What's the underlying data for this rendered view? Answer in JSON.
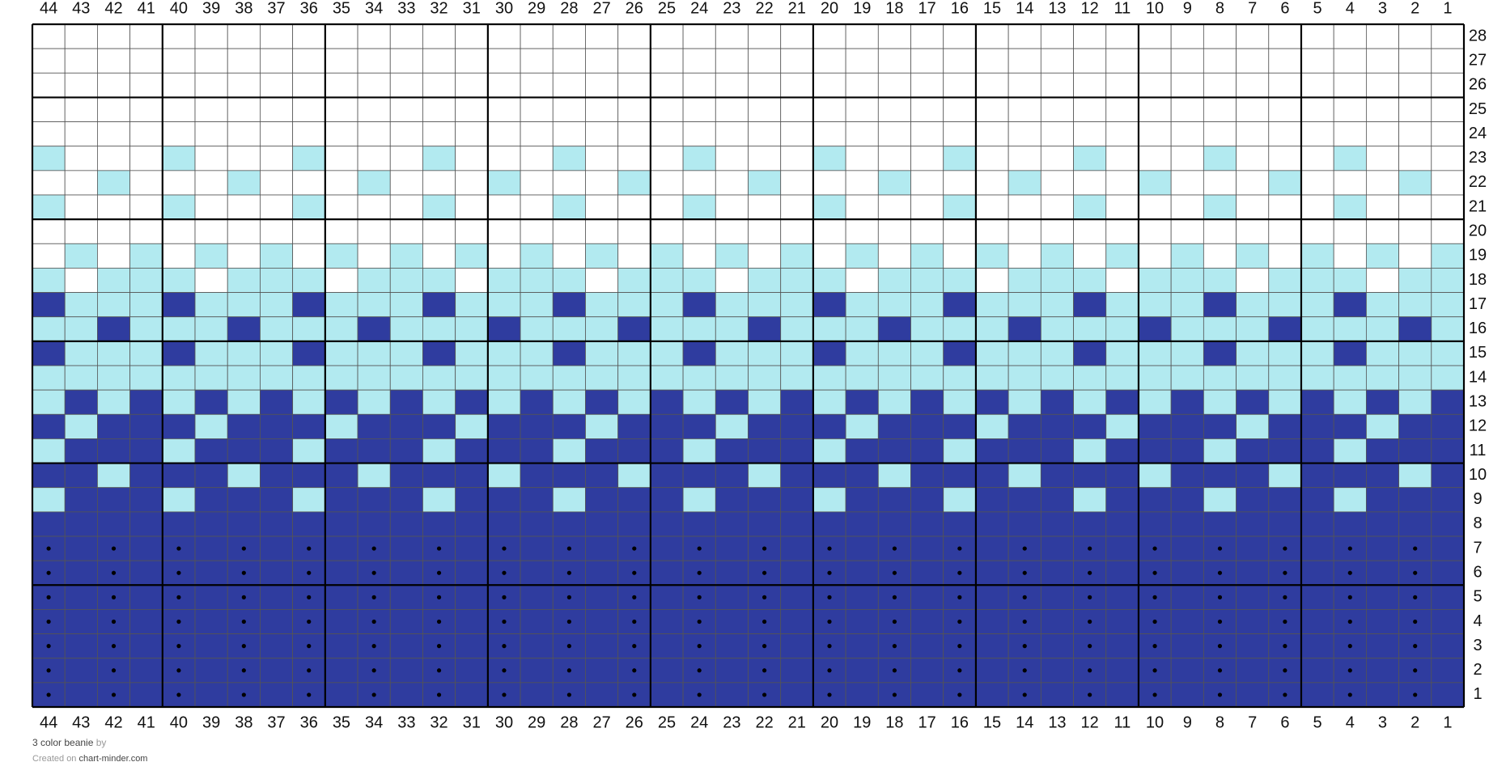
{
  "columns": [
    44,
    43,
    42,
    41,
    40,
    39,
    38,
    37,
    36,
    35,
    34,
    33,
    32,
    31,
    30,
    29,
    28,
    27,
    26,
    25,
    24,
    23,
    22,
    21,
    20,
    19,
    18,
    17,
    16,
    15,
    14,
    13,
    12,
    11,
    10,
    9,
    8,
    7,
    6,
    5,
    4,
    3,
    2,
    1
  ],
  "rows": [
    28,
    27,
    26,
    25,
    24,
    23,
    22,
    21,
    20,
    19,
    18,
    17,
    16,
    15,
    14,
    13,
    12,
    11,
    10,
    9,
    8,
    7,
    6,
    5,
    4,
    3,
    2,
    1
  ],
  "palette": {
    "W": "#ffffff",
    "L": "#b2eaf0",
    "D": "#2f3c9f",
    "d": "#2f3c9f"
  },
  "stitch_marker": "d",
  "pattern": [
    "WWWWWWWWWWWWWWWWWWWWWWWWWWWWWWWWWWWWWWWWWWWW",
    "WWWWWWWWWWWWWWWWWWWWWWWWWWWWWWWWWWWWWWWWWWWW",
    "WWWWWWWWWWWWWWWWWWWWWWWWWWWWWWWWWWWWWWWWWWWW",
    "WWWWWWWWWWWWWWWWWWWWWWWWWWWWWWWWWWWWWWWWWWWW",
    "WWWWWWWWWWWWWWWWWWWWWWWWWWWWWWWWWWWWWWWWWWWW",
    "LWWWLWWWLWWWLWWWLWWWLWWWLWWWLWWWLWWWLWWWLWWW",
    "WWLWWWLWWWLWWWLWWWLWWWLWWWLWWWLWWWLWWWLWWWLW",
    "LWWWLWWWLWWWLWWWLWWWLWWWLWWWLWWWLWWWLWWWLWWW",
    "WWWWWWWWWWWWWWWWWWWWWWWWWWWWWWWWWWWWWWWWWWWW",
    "WLWLWLWLWLWLWLWLWLWLWLWLWLWLWLWLWLWLWLWLWLWL",
    "LWLLLWLLLWLLLWLLLWLLLWLLLWLLLWLLLWLLLWLLLWLL",
    "DLLLDLLLDLLLDLLLDLLLDLLLDLLLDLLLDLLLDLLLDLLL",
    "LLDLLLDLLLDLLLDLLLDLLLDLLLDLLLDLLLDLLLDLLLDL",
    "DLLLDLLLDLLLDLLLDLLLDLLLDLLLDLLLDLLLDLLLDLLL",
    "LLLLLLLLLLLLLLLLLLLLLLLLLLLLLLLLLLLLLLLLLLLL",
    "LDLDLDLDLDLDLDLDLDLDLDLDLDLDLDLDLDLDLDLDLDLD",
    "DLDDDLDDDLDDDLDDDLDDDLDDDLDDDLDDDLDDDLDDDLDD",
    "LDDDLDDDLDDDLDDDLDDDLDDDLDDDLDDDLDDDLDDDLDDD",
    "DDLDDDLDDDLDDDLDDDLDDDLDDDLDDDLDDDLDDDLDDDLD",
    "LDDDLDDDLDDDLDDDLDDDLDDDLDDDLDDDLDDDLDDDLDDD",
    "DDDDDDDDDDDDDDDDDDDDDDDDDDDDDDDDDDDDDDDDDDDD",
    "dDdDdDdDdDdDdDdDdDdDdDdDdDdDdDdDdDdDdDdDdDdD",
    "dDdDdDdDdDdDdDdDdDdDdDdDdDdDdDdDdDdDdDdDdDdD",
    "dDdDdDdDdDdDdDdDdDdDdDdDdDdDdDdDdDdDdDdDdDdD",
    "dDdDdDdDdDdDdDdDdDdDdDdDdDdDdDdDdDdDdDdDdDdD",
    "dDdDdDdDdDdDdDdDdDdDdDdDdDdDdDdDdDdDdDdDdDdD",
    "dDdDdDdDdDdDdDdDdDdDdDdDdDdDdDdDdDdDdDdDdDdD",
    "dDdDdDdDdDdDdDdDdDdDdDdDdDdDdDdDdDdDdDdDdDdD"
  ],
  "footer": {
    "title": "3 color beanie",
    "by": "by",
    "created_on": "Created on",
    "site": "chart-minder.com"
  }
}
